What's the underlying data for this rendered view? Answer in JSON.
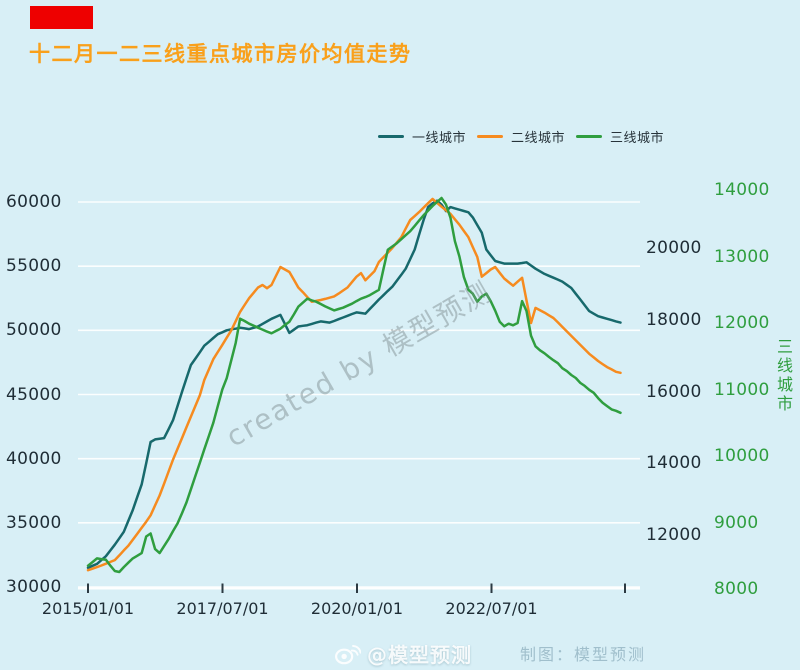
{
  "page": {
    "background_color": "#d8eff6",
    "red_flag_color": "#ee0000",
    "title": "十二月一二三线重点城市房价均值走势",
    "title_color": "#f9a01b",
    "watermark_diagonal": "created by 模型预测",
    "watermark_handle": "@模型预测",
    "credit_text": "制图：模型预测"
  },
  "chart_data": {
    "type": "line",
    "title": "十二月一二三线重点城市房价均值走势",
    "x_interval": "monthly",
    "x_range": [
      "2015/01",
      "2024/12"
    ],
    "x_tick_labels": [
      "2015/01/01",
      "2017/07/01",
      "2020/01/01",
      "2022/07/01"
    ],
    "grid": true,
    "legend_position": "top-center",
    "left_axis": {
      "ticks": [
        60000,
        55000,
        50000,
        45000,
        40000,
        35000,
        30000
      ],
      "range": [
        30000,
        60000
      ],
      "color": "#1f2d36"
    },
    "middle_right_axis": {
      "ticks": [
        20000,
        18000,
        16000,
        14000,
        12000
      ],
      "color": "#1f2d36"
    },
    "right_axis": {
      "label": "三线城市",
      "ticks": [
        14000,
        13000,
        12000,
        11000,
        10000,
        9000,
        8000
      ],
      "range": [
        8000,
        14000
      ],
      "color": "#2f9e3f"
    },
    "series": [
      {
        "name": "一线城市",
        "color": "#17696c",
        "axis": "left",
        "values": [
          31500,
          31650,
          31800,
          32100,
          32400,
          32850,
          33300,
          33800,
          34300,
          35150,
          36000,
          37000,
          38000,
          39650,
          41300,
          41500,
          41550,
          41600,
          42300,
          43000,
          44100,
          45200,
          46250,
          47300,
          47800,
          48300,
          48800,
          49100,
          49400,
          49700,
          49850,
          50000,
          50070,
          50130,
          50200,
          50150,
          50100,
          50200,
          50300,
          50500,
          50700,
          50900,
          51050,
          51200,
          50500,
          49800,
          50050,
          50300,
          50350,
          50400,
          50500,
          50600,
          50700,
          50650,
          50600,
          50730,
          50870,
          51000,
          51130,
          51270,
          51400,
          51350,
          51300,
          51670,
          52030,
          52400,
          52730,
          53070,
          53400,
          53870,
          54330,
          54800,
          55550,
          56300,
          57450,
          58600,
          59600,
          59900,
          60100,
          59800,
          59300,
          59600,
          59500,
          59400,
          59300,
          59200,
          58800,
          58200,
          57600,
          56300,
          55850,
          55400,
          55300,
          55200,
          55200,
          55200,
          55200,
          55250,
          55300,
          55050,
          54800,
          54600,
          54400,
          54250,
          54100,
          53950,
          53800,
          53550,
          53300,
          52850,
          52400,
          51950,
          51500,
          51300,
          51100,
          51000,
          50900,
          50800,
          50700,
          50600
        ]
      },
      {
        "name": "二线城市",
        "color": "#f68b1f",
        "axis": "middle",
        "values": [
          11020,
          11060,
          11105,
          11150,
          11200,
          11250,
          11300,
          11430,
          11570,
          11700,
          11870,
          12030,
          12200,
          12370,
          12550,
          12825,
          13100,
          13430,
          13770,
          14100,
          14400,
          14700,
          15000,
          15300,
          15600,
          15900,
          16320,
          16610,
          16900,
          17100,
          17300,
          17500,
          17700,
          17960,
          18220,
          18410,
          18600,
          18750,
          18900,
          18970,
          18880,
          18970,
          19220,
          19470,
          19400,
          19330,
          19115,
          18900,
          18770,
          18630,
          18500,
          18525,
          18550,
          18580,
          18615,
          18650,
          18730,
          18815,
          18900,
          19050,
          19200,
          19300,
          19100,
          19225,
          19350,
          19610,
          19740,
          19870,
          20000,
          20150,
          20300,
          20540,
          20780,
          20890,
          21000,
          21125,
          21250,
          21370,
          21260,
          21150,
          21050,
          20950,
          20800,
          20650,
          20475,
          20300,
          20025,
          19750,
          19200,
          19300,
          19400,
          19470,
          19310,
          19150,
          19050,
          18950,
          19060,
          19170,
          18540,
          17910,
          18330,
          18265,
          18200,
          18125,
          18050,
          17925,
          17800,
          17675,
          17550,
          17425,
          17300,
          17175,
          17050,
          16950,
          16850,
          16765,
          16680,
          16615,
          16550,
          16520
        ]
      },
      {
        "name": "三线城市",
        "color": "#2f9e3f",
        "axis": "right",
        "values": [
          8350,
          8405,
          8460,
          8450,
          8440,
          8350,
          8270,
          8255,
          8330,
          8395,
          8460,
          8500,
          8540,
          8790,
          8835,
          8600,
          8540,
          8645,
          8750,
          8870,
          8985,
          9140,
          9300,
          9500,
          9700,
          9900,
          10100,
          10300,
          10500,
          10750,
          11000,
          11170,
          11435,
          11700,
          12065,
          12030,
          11990,
          11960,
          11930,
          11900,
          11870,
          11845,
          11880,
          11915,
          11970,
          12020,
          12130,
          12245,
          12305,
          12365,
          12340,
          12320,
          12285,
          12250,
          12220,
          12190,
          12210,
          12230,
          12260,
          12290,
          12330,
          12365,
          12390,
          12420,
          12460,
          12500,
          12800,
          13100,
          13150,
          13200,
          13260,
          13320,
          13380,
          13460,
          13540,
          13620,
          13690,
          13760,
          13820,
          13880,
          13780,
          13580,
          13230,
          13000,
          12690,
          12500,
          12440,
          12320,
          12400,
          12440,
          12330,
          12185,
          12020,
          11950,
          11990,
          11965,
          12000,
          12330,
          12180,
          11810,
          11650,
          11590,
          11545,
          11490,
          11440,
          11396,
          11320,
          11277,
          11218,
          11173,
          11100,
          11054,
          10995,
          10950,
          10870,
          10800,
          10750,
          10700,
          10680,
          10650
        ]
      }
    ]
  }
}
